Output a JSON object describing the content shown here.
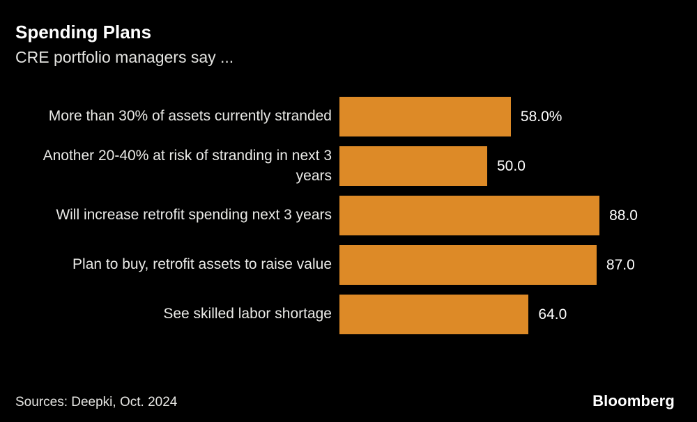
{
  "header": {
    "title": "Spending Plans",
    "subtitle": "CRE portfolio managers say ..."
  },
  "chart_data": {
    "type": "bar",
    "orientation": "horizontal",
    "title": "Spending Plans",
    "subtitle": "CRE portfolio managers say ...",
    "categories": [
      "More than 30% of assets currently stranded",
      "Another 20-40% at risk of stranding in next 3 years",
      "Will increase retrofit spending next 3 years",
      "Plan to buy, retrofit assets to raise value",
      "See skilled labor shortage"
    ],
    "values": [
      58.0,
      50.0,
      88.0,
      87.0,
      64.0
    ],
    "value_labels": [
      "58.0%",
      "50.0",
      "88.0",
      "87.0",
      "64.0"
    ],
    "xlabel": "",
    "ylabel": "",
    "xlim": [
      0,
      100
    ],
    "grid": false,
    "legend_position": "none",
    "bar_color": "#DD8A27",
    "background_color": "#000000",
    "text_color": "#FFFFFF"
  },
  "footer": {
    "source": "Sources: Deepki, Oct. 2024",
    "brand": "Bloomberg"
  }
}
